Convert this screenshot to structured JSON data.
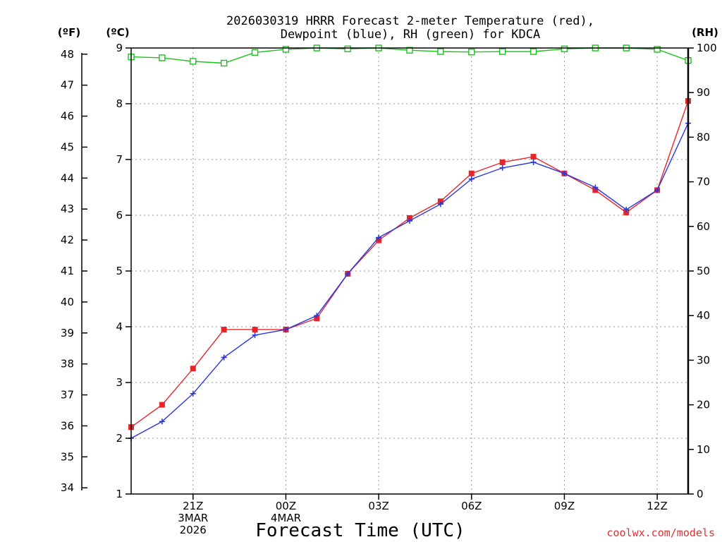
{
  "chart_data": {
    "type": "line",
    "title_lines": [
      "2026030319 HRRR Forecast 2-meter Temperature (red),",
      "Dewpoint (blue), RH (green) for KDCA"
    ],
    "xlabel": "Forecast Time (UTC)",
    "credit": "coolwx.com/models",
    "units": {
      "fahrenheit": "(ºF)",
      "celsius": "(ºC)",
      "rh": "(RH)"
    },
    "x_hours": [
      19,
      20,
      21,
      22,
      23,
      24,
      25,
      26,
      27,
      28,
      29,
      30,
      31,
      32,
      33,
      34,
      35,
      36,
      37
    ],
    "x_ticks": [
      {
        "x": 21,
        "lines": [
          "21Z",
          "3MAR",
          "2026"
        ]
      },
      {
        "x": 24,
        "lines": [
          "00Z",
          "4MAR"
        ]
      },
      {
        "x": 27,
        "lines": [
          "03Z"
        ]
      },
      {
        "x": 30,
        "lines": [
          "06Z"
        ]
      },
      {
        "x": 33,
        "lines": [
          "09Z"
        ]
      },
      {
        "x": 36,
        "lines": [
          "12Z"
        ]
      }
    ],
    "xlim": [
      19,
      37
    ],
    "ylim_celsius": [
      1,
      9
    ],
    "ylim_rh": [
      0,
      100
    ],
    "fahrenheit_ticks": [
      34,
      35,
      36,
      37,
      38,
      39,
      40,
      41,
      42,
      43,
      44,
      45,
      46,
      47,
      48
    ],
    "celsius_ticks": [
      1,
      2,
      3,
      4,
      5,
      6,
      7,
      8,
      9
    ],
    "rh_ticks": [
      0,
      10,
      20,
      30,
      40,
      50,
      60,
      70,
      80,
      90,
      100
    ],
    "grid": true,
    "series": [
      {
        "name": "Temperature",
        "color": "#e8262a",
        "marker": "filled-square",
        "axis": "celsius",
        "values": [
          2.2,
          2.6,
          3.25,
          3.95,
          3.95,
          3.95,
          4.15,
          4.95,
          5.55,
          5.95,
          6.25,
          6.75,
          6.95,
          7.05,
          6.75,
          6.45,
          6.05,
          6.45,
          8.05
        ]
      },
      {
        "name": "Dewpoint",
        "color": "#2a38e0",
        "marker": "plus",
        "axis": "celsius",
        "values": [
          2.0,
          2.3,
          2.8,
          3.45,
          3.85,
          3.95,
          4.2,
          4.95,
          5.6,
          5.9,
          6.2,
          6.65,
          6.85,
          6.95,
          6.75,
          6.5,
          6.1,
          6.45,
          7.65
        ]
      },
      {
        "name": "RH",
        "color": "#19c419",
        "marker": "open-square",
        "axis": "rh",
        "values": [
          98,
          97.8,
          97,
          96.6,
          99,
          99.7,
          100,
          99.8,
          100,
          99.5,
          99.2,
          99.1,
          99.2,
          99.2,
          99.8,
          100,
          100,
          99.7,
          97.2
        ]
      }
    ]
  }
}
